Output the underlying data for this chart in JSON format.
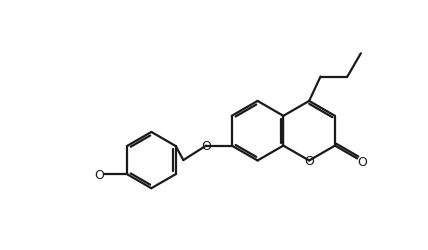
{
  "background_color": "#ffffff",
  "line_color": "#1a1a1a",
  "line_width": 1.6,
  "fig_width": 4.28,
  "fig_height": 2.51,
  "dpi": 100,
  "xlim": [
    0,
    10
  ],
  "ylim": [
    0,
    6
  ]
}
